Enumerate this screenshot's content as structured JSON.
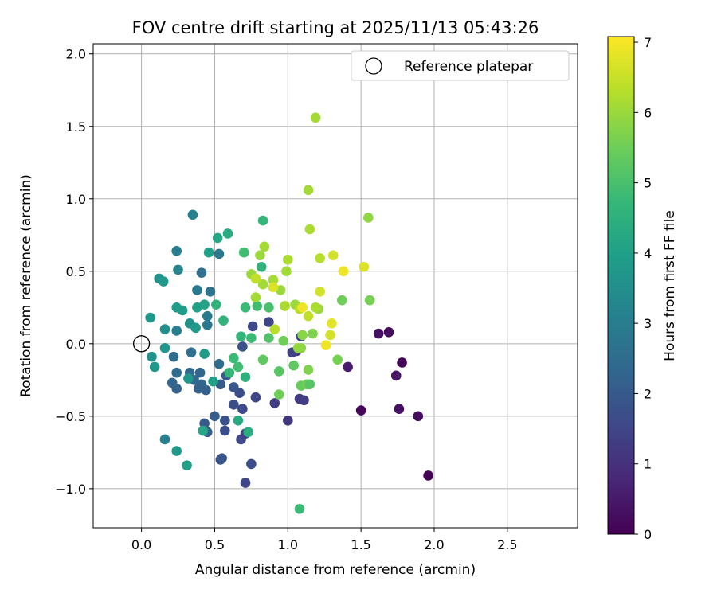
{
  "chart_data": {
    "type": "scatter",
    "title": "FOV centre drift starting at 2025/11/13 05:43:26",
    "xlabel": "Angular distance from reference (arcmin)",
    "ylabel": "Rotation from reference (arcmin)",
    "xlim": [
      -0.33,
      2.98
    ],
    "ylim": [
      -1.27,
      2.07
    ],
    "xticks": [
      0.0,
      0.5,
      1.0,
      1.5,
      2.0,
      2.5
    ],
    "yticks": [
      -1.0,
      -0.5,
      0.0,
      0.5,
      1.0,
      1.5,
      2.0
    ],
    "x_tick_labels": [
      "0.0",
      "0.5",
      "1.0",
      "1.5",
      "2.0",
      "2.5"
    ],
    "y_tick_labels": [
      "−1.0",
      "−0.5",
      "0.0",
      "0.5",
      "1.0",
      "1.5",
      "2.0"
    ],
    "grid": true,
    "legend": {
      "placement": "top-right",
      "entries": [
        "Reference platepar"
      ]
    },
    "reference_point": {
      "x": 0.0,
      "y": 0.0,
      "label": "Reference platepar"
    },
    "colorbar": {
      "label": "Hours from first FF file",
      "range": [
        0,
        7.08
      ],
      "ticks": [
        0,
        1,
        2,
        3,
        4,
        5,
        6,
        7
      ],
      "tick_labels": [
        "0",
        "1",
        "2",
        "3",
        "4",
        "5",
        "6",
        "7"
      ],
      "colormap": "viridis"
    },
    "colormap_stops": [
      "#440154",
      "#482878",
      "#3e4989",
      "#31688e",
      "#26828e",
      "#1f9e89",
      "#35b779",
      "#6ece58",
      "#b5de2b",
      "#fde725"
    ],
    "points": [
      {
        "x": 1.96,
        "y": -0.91,
        "t": 0.0
      },
      {
        "x": 1.78,
        "y": -0.13,
        "t": 0.1
      },
      {
        "x": 1.89,
        "y": -0.5,
        "t": 0.2
      },
      {
        "x": 1.76,
        "y": -0.45,
        "t": 0.3
      },
      {
        "x": 1.74,
        "y": -0.22,
        "t": 0.4
      },
      {
        "x": 1.69,
        "y": 0.08,
        "t": 0.2
      },
      {
        "x": 1.62,
        "y": 0.07,
        "t": 0.3
      },
      {
        "x": 1.5,
        "y": -0.46,
        "t": 0.1
      },
      {
        "x": 1.41,
        "y": -0.16,
        "t": 0.5
      },
      {
        "x": 0.71,
        "y": -0.96,
        "t": 1.5
      },
      {
        "x": 0.54,
        "y": -0.8,
        "t": 1.8
      },
      {
        "x": 0.55,
        "y": -0.79,
        "t": 1.9
      },
      {
        "x": 0.75,
        "y": -0.83,
        "t": 1.7
      },
      {
        "x": 0.68,
        "y": -0.66,
        "t": 1.6
      },
      {
        "x": 0.71,
        "y": -0.62,
        "t": 1.4
      },
      {
        "x": 0.57,
        "y": -0.6,
        "t": 1.7
      },
      {
        "x": 0.45,
        "y": -0.61,
        "t": 2.1
      },
      {
        "x": 0.43,
        "y": -0.55,
        "t": 2.0
      },
      {
        "x": 0.57,
        "y": -0.53,
        "t": 1.8
      },
      {
        "x": 0.5,
        "y": -0.5,
        "t": 2.1
      },
      {
        "x": 0.63,
        "y": -0.42,
        "t": 1.7
      },
      {
        "x": 0.69,
        "y": -0.45,
        "t": 1.6
      },
      {
        "x": 0.78,
        "y": -0.37,
        "t": 1.5
      },
      {
        "x": 0.67,
        "y": -0.34,
        "t": 1.7
      },
      {
        "x": 0.63,
        "y": -0.3,
        "t": 1.9
      },
      {
        "x": 0.54,
        "y": -0.28,
        "t": 2.0
      },
      {
        "x": 0.44,
        "y": -0.32,
        "t": 2.2
      },
      {
        "x": 0.41,
        "y": -0.28,
        "t": 2.3
      },
      {
        "x": 0.39,
        "y": -0.31,
        "t": 2.2
      },
      {
        "x": 0.36,
        "y": -0.25,
        "t": 2.4
      },
      {
        "x": 0.24,
        "y": -0.31,
        "t": 2.2
      },
      {
        "x": 0.21,
        "y": -0.27,
        "t": 2.3
      },
      {
        "x": 0.24,
        "y": -0.2,
        "t": 2.5
      },
      {
        "x": 0.33,
        "y": -0.2,
        "t": 2.4
      },
      {
        "x": 0.4,
        "y": -0.2,
        "t": 2.3
      },
      {
        "x": 0.53,
        "y": -0.14,
        "t": 2.5
      },
      {
        "x": 0.58,
        "y": -0.22,
        "t": 2.0
      },
      {
        "x": 0.69,
        "y": -0.02,
        "t": 1.8
      },
      {
        "x": 0.34,
        "y": -0.06,
        "t": 2.6
      },
      {
        "x": 0.22,
        "y": -0.09,
        "t": 2.5
      },
      {
        "x": 0.91,
        "y": -0.41,
        "t": 1.3
      },
      {
        "x": 1.0,
        "y": -0.53,
        "t": 1.2
      },
      {
        "x": 1.08,
        "y": -0.38,
        "t": 1.2
      },
      {
        "x": 1.11,
        "y": -0.39,
        "t": 1.3
      },
      {
        "x": 1.06,
        "y": -0.05,
        "t": 1.1
      },
      {
        "x": 1.03,
        "y": -0.06,
        "t": 1.4
      },
      {
        "x": 0.76,
        "y": 0.12,
        "t": 1.6
      },
      {
        "x": 0.87,
        "y": 0.15,
        "t": 1.5
      },
      {
        "x": 1.09,
        "y": 0.05,
        "t": 1.5
      },
      {
        "x": 0.53,
        "y": 0.62,
        "t": 2.8
      },
      {
        "x": 0.47,
        "y": 0.36,
        "t": 2.7
      },
      {
        "x": 0.41,
        "y": 0.49,
        "t": 2.6
      },
      {
        "x": 0.45,
        "y": 0.19,
        "t": 2.9
      },
      {
        "x": 0.45,
        "y": 0.13,
        "t": 2.8
      },
      {
        "x": 0.38,
        "y": 0.37,
        "t": 2.9
      },
      {
        "x": 0.35,
        "y": 0.89,
        "t": 3.1
      },
      {
        "x": 0.24,
        "y": 0.64,
        "t": 3.0
      },
      {
        "x": 0.25,
        "y": 0.51,
        "t": 3.2
      },
      {
        "x": 0.24,
        "y": 0.09,
        "t": 3.0
      },
      {
        "x": 0.12,
        "y": 0.45,
        "t": 3.6
      },
      {
        "x": 0.15,
        "y": 0.43,
        "t": 3.8
      },
      {
        "x": 0.16,
        "y": 0.1,
        "t": 3.5
      },
      {
        "x": 0.06,
        "y": 0.18,
        "t": 3.8
      },
      {
        "x": 0.16,
        "y": -0.03,
        "t": 3.7
      },
      {
        "x": 0.07,
        "y": -0.09,
        "t": 3.6
      },
      {
        "x": 0.09,
        "y": -0.16,
        "t": 3.7
      },
      {
        "x": 0.16,
        "y": -0.66,
        "t": 3.1
      },
      {
        "x": 0.24,
        "y": -0.74,
        "t": 3.8
      },
      {
        "x": 0.31,
        "y": -0.84,
        "t": 4.0
      },
      {
        "x": 0.32,
        "y": -0.24,
        "t": 3.7
      },
      {
        "x": 0.42,
        "y": -0.6,
        "t": 4.2
      },
      {
        "x": 0.43,
        "y": -0.07,
        "t": 3.9
      },
      {
        "x": 0.49,
        "y": -0.26,
        "t": 4.0
      },
      {
        "x": 0.33,
        "y": 0.14,
        "t": 3.6
      },
      {
        "x": 0.37,
        "y": 0.11,
        "t": 3.8
      },
      {
        "x": 0.24,
        "y": 0.25,
        "t": 3.9
      },
      {
        "x": 0.28,
        "y": 0.23,
        "t": 3.9
      },
      {
        "x": 0.38,
        "y": 0.25,
        "t": 4.0
      },
      {
        "x": 0.43,
        "y": 0.27,
        "t": 4.1
      },
      {
        "x": 0.46,
        "y": 0.63,
        "t": 4.0
      },
      {
        "x": 0.51,
        "y": 0.27,
        "t": 4.6
      },
      {
        "x": 0.56,
        "y": 0.16,
        "t": 4.6
      },
      {
        "x": 0.52,
        "y": 0.73,
        "t": 4.2
      },
      {
        "x": 0.59,
        "y": 0.76,
        "t": 4.3
      },
      {
        "x": 0.6,
        "y": -0.2,
        "t": 4.7
      },
      {
        "x": 0.66,
        "y": -0.16,
        "t": 4.9
      },
      {
        "x": 0.63,
        "y": -0.1,
        "t": 4.8
      },
      {
        "x": 0.66,
        "y": -0.53,
        "t": 4.3
      },
      {
        "x": 0.73,
        "y": -0.61,
        "t": 4.4
      },
      {
        "x": 0.71,
        "y": -0.23,
        "t": 4.5
      },
      {
        "x": 0.68,
        "y": 0.05,
        "t": 4.7
      },
      {
        "x": 0.71,
        "y": 0.25,
        "t": 4.8
      },
      {
        "x": 0.7,
        "y": 0.63,
        "t": 4.9
      },
      {
        "x": 0.75,
        "y": 0.04,
        "t": 4.8
      },
      {
        "x": 0.82,
        "y": 0.53,
        "t": 4.6
      },
      {
        "x": 0.83,
        "y": 0.85,
        "t": 4.7
      },
      {
        "x": 0.79,
        "y": 0.26,
        "t": 4.9
      },
      {
        "x": 0.87,
        "y": 0.25,
        "t": 5.0
      },
      {
        "x": 0.87,
        "y": 0.04,
        "t": 5.1
      },
      {
        "x": 0.83,
        "y": -0.11,
        "t": 5.3
      },
      {
        "x": 0.94,
        "y": -0.19,
        "t": 5.2
      },
      {
        "x": 0.94,
        "y": -0.35,
        "t": 5.5
      },
      {
        "x": 1.04,
        "y": -0.15,
        "t": 5.3
      },
      {
        "x": 0.97,
        "y": 0.02,
        "t": 5.5
      },
      {
        "x": 1.08,
        "y": -1.14,
        "t": 4.8
      },
      {
        "x": 1.09,
        "y": -0.29,
        "t": 5.4
      },
      {
        "x": 1.13,
        "y": -0.28,
        "t": 5.5
      },
      {
        "x": 1.15,
        "y": -0.28,
        "t": 5.2
      },
      {
        "x": 1.14,
        "y": -0.18,
        "t": 5.7
      },
      {
        "x": 1.09,
        "y": -0.03,
        "t": 5.8
      },
      {
        "x": 1.07,
        "y": -0.03,
        "t": 5.9
      },
      {
        "x": 1.1,
        "y": 0.06,
        "t": 5.8
      },
      {
        "x": 1.17,
        "y": 0.07,
        "t": 5.7
      },
      {
        "x": 1.34,
        "y": -0.11,
        "t": 5.6
      },
      {
        "x": 1.37,
        "y": 0.3,
        "t": 5.5
      },
      {
        "x": 1.56,
        "y": 0.3,
        "t": 5.6
      },
      {
        "x": 1.55,
        "y": 0.87,
        "t": 5.9
      },
      {
        "x": 1.19,
        "y": 1.56,
        "t": 6.1
      },
      {
        "x": 1.14,
        "y": 1.06,
        "t": 6.1
      },
      {
        "x": 1.15,
        "y": 0.79,
        "t": 6.2
      },
      {
        "x": 1.22,
        "y": 0.59,
        "t": 6.3
      },
      {
        "x": 1.0,
        "y": 0.58,
        "t": 6.2
      },
      {
        "x": 0.84,
        "y": 0.67,
        "t": 6.1
      },
      {
        "x": 0.81,
        "y": 0.61,
        "t": 6.0
      },
      {
        "x": 0.75,
        "y": 0.48,
        "t": 6.0
      },
      {
        "x": 0.83,
        "y": 0.41,
        "t": 6.1
      },
      {
        "x": 0.78,
        "y": 0.45,
        "t": 6.4
      },
      {
        "x": 0.78,
        "y": 0.32,
        "t": 6.1
      },
      {
        "x": 0.9,
        "y": 0.44,
        "t": 6.1
      },
      {
        "x": 0.95,
        "y": 0.37,
        "t": 6.0
      },
      {
        "x": 0.99,
        "y": 0.5,
        "t": 6.1
      },
      {
        "x": 0.98,
        "y": 0.26,
        "t": 6.2
      },
      {
        "x": 1.05,
        "y": 0.27,
        "t": 6.0
      },
      {
        "x": 1.08,
        "y": 0.24,
        "t": 6.3
      },
      {
        "x": 1.14,
        "y": 0.19,
        "t": 6.4
      },
      {
        "x": 1.21,
        "y": 0.24,
        "t": 6.0
      },
      {
        "x": 1.19,
        "y": 0.25,
        "t": 6.2
      },
      {
        "x": 0.91,
        "y": 0.1,
        "t": 6.3
      },
      {
        "x": 1.22,
        "y": 0.36,
        "t": 6.6
      },
      {
        "x": 1.31,
        "y": 0.61,
        "t": 6.6
      },
      {
        "x": 1.38,
        "y": 0.5,
        "t": 6.9
      },
      {
        "x": 1.52,
        "y": 0.53,
        "t": 6.7
      },
      {
        "x": 1.1,
        "y": 0.25,
        "t": 6.9
      },
      {
        "x": 0.9,
        "y": 0.39,
        "t": 6.7
      },
      {
        "x": 1.29,
        "y": 0.06,
        "t": 6.6
      },
      {
        "x": 1.3,
        "y": 0.14,
        "t": 6.8
      },
      {
        "x": 1.26,
        "y": -0.01,
        "t": 6.9
      }
    ]
  }
}
